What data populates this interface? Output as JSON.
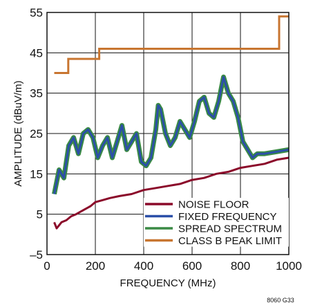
{
  "chart_data": {
    "type": "line",
    "xlabel": "FREQUENCY (MHz)",
    "ylabel": "AMPLITUDE (dBuV/m)",
    "xlim": [
      0,
      1000
    ],
    "ylim": [
      -5,
      55
    ],
    "x_ticks": [
      0,
      200,
      400,
      600,
      800,
      1000
    ],
    "y_ticks": [
      -5,
      5,
      15,
      25,
      35,
      45,
      55
    ],
    "x_tick_labels": [
      "0",
      "200",
      "400",
      "600",
      "800",
      "1000"
    ],
    "y_tick_labels": [
      "–5",
      "5",
      "15",
      "25",
      "35",
      "45",
      "55"
    ],
    "grid": true,
    "legend_placement": "bottom-right",
    "figure_note": "8060 G33",
    "series": [
      {
        "name": "NOISE FLOOR",
        "color": "#8b0a2a",
        "band": 3,
        "x": [
          30,
          40,
          60,
          80,
          100,
          120,
          150,
          180,
          200,
          230,
          260,
          300,
          350,
          400,
          450,
          500,
          550,
          600,
          650,
          700,
          750,
          800,
          850,
          900,
          950,
          1000
        ],
        "y": [
          3,
          1.5,
          3,
          3.5,
          4.5,
          5,
          6,
          7,
          8,
          8.5,
          9,
          9.5,
          10,
          11,
          11.5,
          12,
          12.5,
          13.5,
          14,
          15,
          15.5,
          16.5,
          17,
          17.5,
          18.5,
          19
        ]
      },
      {
        "name": "FIXED FREQUENCY",
        "color": "#2b4fa8",
        "band": 3,
        "x": [
          30,
          50,
          70,
          90,
          110,
          130,
          150,
          170,
          190,
          210,
          230,
          250,
          270,
          290,
          310,
          330,
          350,
          370,
          390,
          410,
          430,
          450,
          460,
          470,
          490,
          510,
          530,
          550,
          570,
          590,
          610,
          630,
          650,
          670,
          690,
          710,
          730,
          750,
          770,
          790,
          810,
          830,
          850,
          870,
          900,
          950,
          1000
        ],
        "y": [
          10,
          16,
          14,
          22,
          24,
          20,
          25,
          26,
          24,
          19,
          22,
          24,
          19,
          23,
          27,
          21,
          23,
          25,
          18,
          17,
          19,
          26,
          32,
          31,
          25,
          22,
          24,
          28,
          26,
          24,
          28,
          33,
          34,
          30,
          29,
          33,
          39,
          35,
          33,
          29,
          23,
          21,
          19,
          20,
          20,
          20.5,
          21
        ]
      },
      {
        "name": "SPREAD SPECTRUM",
        "color": "#3a8a45",
        "band": 7,
        "x": [
          30,
          50,
          70,
          90,
          110,
          130,
          150,
          170,
          190,
          210,
          230,
          250,
          270,
          290,
          310,
          330,
          350,
          370,
          390,
          410,
          430,
          450,
          460,
          470,
          490,
          510,
          530,
          550,
          570,
          590,
          610,
          630,
          650,
          670,
          690,
          710,
          730,
          750,
          770,
          790,
          810,
          830,
          850,
          870,
          900,
          950,
          1000
        ],
        "y": [
          10,
          16,
          14,
          22,
          24,
          20,
          25,
          26,
          24,
          19,
          22,
          24,
          19,
          23,
          27,
          21,
          23,
          25,
          18,
          17,
          19,
          26,
          32,
          31,
          25,
          22,
          24,
          28,
          26,
          24,
          28,
          33,
          34,
          30,
          29,
          33,
          39,
          35,
          33,
          29,
          23,
          21,
          19,
          20,
          20,
          20.5,
          21
        ]
      },
      {
        "name": "CLASS B PEAK LIMIT",
        "color": "#c87530",
        "band": 3,
        "step": true,
        "x": [
          30,
          88,
          88,
          216,
          216,
          960,
          960,
          1000
        ],
        "y": [
          40,
          40,
          43.5,
          43.5,
          46,
          46,
          54,
          54
        ]
      }
    ],
    "legend_order": [
      0,
      1,
      2,
      3
    ]
  }
}
